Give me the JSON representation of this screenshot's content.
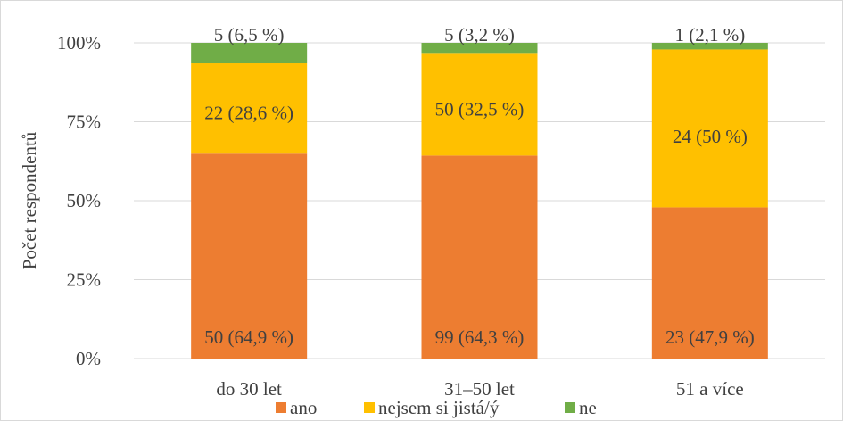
{
  "chart_data": {
    "type": "bar",
    "stacked": "percent",
    "categories": [
      "do 30 let",
      "31–50 let",
      "51 a více"
    ],
    "series": [
      {
        "name": "ano",
        "color": "#ED7D31",
        "values": [
          64.9,
          64.3,
          47.9
        ],
        "labels": [
          "50 (64,9 %)",
          "99 (64,3 %)",
          "23 (47,9 %)"
        ]
      },
      {
        "name": "nejsem si jistá/ý",
        "color": "#FFC000",
        "values": [
          28.6,
          32.5,
          50
        ],
        "labels": [
          "22 (28,6 %)",
          "50 (32,5 %)",
          "24 (50 %)"
        ]
      },
      {
        "name": "ne",
        "color": "#70AD47",
        "values": [
          6.5,
          3.2,
          2.1
        ],
        "labels": [
          "5 (6,5 %)",
          "5 (3,2 %)",
          "1 (2,1 %)"
        ]
      }
    ],
    "ylabel": "Počet respondentů",
    "yticks": [
      "0%",
      "25%",
      "50%",
      "75%",
      "100%"
    ],
    "ylim": [
      0,
      100
    ],
    "grid": true,
    "legend": "bottom"
  }
}
